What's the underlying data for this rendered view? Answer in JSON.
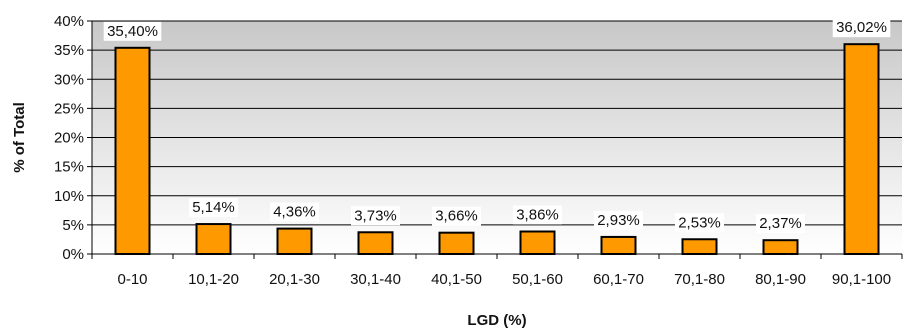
{
  "chart_data": {
    "type": "bar",
    "categories": [
      "0-10",
      "10,1-20",
      "20,1-30",
      "30,1-40",
      "40,1-50",
      "50,1-60",
      "60,1-70",
      "70,1-80",
      "80,1-90",
      "90,1-100"
    ],
    "values": [
      35.4,
      5.14,
      4.36,
      3.73,
      3.66,
      3.86,
      2.93,
      2.53,
      2.37,
      36.02
    ],
    "data_labels": [
      "35,40%",
      "5,14%",
      "4,36%",
      "3,73%",
      "3,66%",
      "3,86%",
      "2,93%",
      "2,53%",
      "2,37%",
      "36,02%"
    ],
    "title": "",
    "xlabel": "LGD (%)",
    "ylabel": "% of Total",
    "ylim": [
      0,
      40
    ],
    "yticks": [
      0,
      5,
      10,
      15,
      20,
      25,
      30,
      35,
      40
    ],
    "ytick_labels": [
      "0%",
      "5%",
      "10%",
      "15%",
      "20%",
      "25%",
      "30%",
      "35%",
      "40%"
    ],
    "grid": true,
    "colors": {
      "bar_fill": "#FF9900",
      "bar_stroke": "#000000",
      "plot_bg_top": "#C8C8C8",
      "plot_bg_bottom": "#FFFFFF",
      "gridline": "#000000"
    }
  }
}
